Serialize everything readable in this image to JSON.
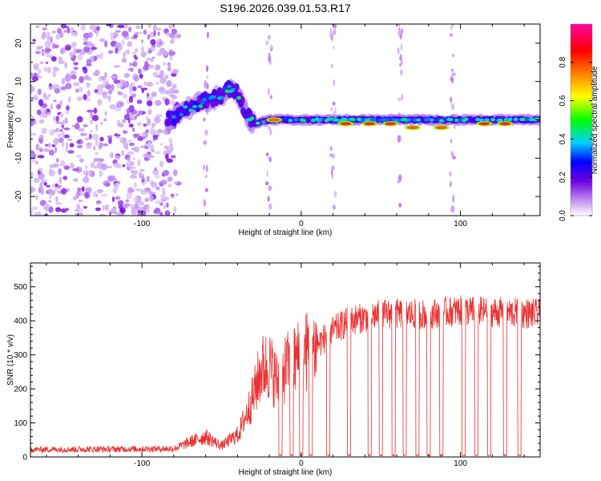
{
  "title": "S196.2026.039.01.53.R17",
  "chart_data": [
    {
      "type": "heatmap",
      "name": "spectrogram",
      "xlabel": "Height of straight line (km)",
      "ylabel": "Frequency (Hz)",
      "xlim": [
        -170,
        150
      ],
      "ylim": [
        -25,
        25
      ],
      "xticks": [
        -100,
        0,
        100
      ],
      "xtick_labels": [
        "-100",
        "0",
        "100"
      ],
      "yticks": [
        20,
        10,
        0,
        -10,
        -20
      ],
      "ytick_labels": [
        "20",
        "10",
        "0",
        "-10",
        "-20"
      ],
      "noise_region_x": [
        -170,
        -83
      ],
      "noise_level": 0.15,
      "ridge": [
        {
          "x": -83,
          "f": 0
        },
        {
          "x": -75,
          "f": 2
        },
        {
          "x": -67,
          "f": 4
        },
        {
          "x": -60,
          "f": 5
        },
        {
          "x": -52,
          "f": 6
        },
        {
          "x": -45,
          "f": 8
        },
        {
          "x": -40,
          "f": 7
        },
        {
          "x": -35,
          "f": 2
        },
        {
          "x": -30,
          "f": -1
        },
        {
          "x": -20,
          "f": 0
        },
        {
          "x": 150,
          "f": 0
        }
      ],
      "hot_spots": [
        {
          "x": -17,
          "f": 0,
          "amp": 0.9
        },
        {
          "x": 28,
          "f": -1,
          "amp": 0.95
        },
        {
          "x": 43,
          "f": -1,
          "amp": 0.95
        },
        {
          "x": 56,
          "f": -1,
          "amp": 0.95
        },
        {
          "x": 70,
          "f": -2,
          "amp": 0.9
        },
        {
          "x": 88,
          "f": -2,
          "amp": 0.9
        },
        {
          "x": 115,
          "f": -1,
          "amp": 0.95
        },
        {
          "x": 128,
          "f": -1,
          "amp": 0.95
        }
      ],
      "vertical_streaks": [
        -60,
        -20,
        20,
        62,
        95
      ],
      "colorbar": {
        "label": "Normalized spectral amplitude",
        "range": [
          0,
          1
        ],
        "ticks": [
          0.0,
          0.2,
          0.4,
          0.6,
          0.8
        ],
        "tick_labels": [
          "0.0",
          "0.2",
          "0.4",
          "0.6",
          "0.8"
        ],
        "colors": [
          "#ffffff",
          "#c090f0",
          "#7000e0",
          "#0000ff",
          "#00d0ff",
          "#00ff00",
          "#ffff00",
          "#ff8000",
          "#ff0000",
          "#ff00a0"
        ]
      }
    },
    {
      "type": "line",
      "name": "snr",
      "xlabel": "Height of straight line (km)",
      "ylabel": "SNR (10 * v/v)",
      "xlim": [
        -170,
        150
      ],
      "ylim": [
        0,
        570
      ],
      "xticks": [
        -100,
        0,
        100
      ],
      "xtick_labels": [
        "-100",
        "0",
        "100"
      ],
      "yticks": [
        0,
        100,
        200,
        300,
        400,
        500
      ],
      "ytick_labels": [
        "0",
        "100",
        "200",
        "300",
        "400",
        "500"
      ],
      "color": "#e83030",
      "envelope": [
        {
          "x": -170,
          "y": 20
        },
        {
          "x": -80,
          "y": 22
        },
        {
          "x": -70,
          "y": 40
        },
        {
          "x": -60,
          "y": 55
        },
        {
          "x": -50,
          "y": 30
        },
        {
          "x": -40,
          "y": 60
        },
        {
          "x": -35,
          "y": 120
        },
        {
          "x": -30,
          "y": 180
        },
        {
          "x": -25,
          "y": 260
        },
        {
          "x": -20,
          "y": 270
        },
        {
          "x": -15,
          "y": 220
        },
        {
          "x": -10,
          "y": 260
        },
        {
          "x": 0,
          "y": 300
        },
        {
          "x": 10,
          "y": 330
        },
        {
          "x": 20,
          "y": 370
        },
        {
          "x": 30,
          "y": 400
        },
        {
          "x": 50,
          "y": 420
        },
        {
          "x": 80,
          "y": 420
        },
        {
          "x": 100,
          "y": 430
        },
        {
          "x": 150,
          "y": 420
        }
      ],
      "dropouts": [
        -13,
        -6,
        0,
        6,
        17,
        30,
        43,
        50,
        58,
        65,
        73,
        80,
        88,
        102,
        110,
        118,
        128,
        137
      ]
    }
  ]
}
